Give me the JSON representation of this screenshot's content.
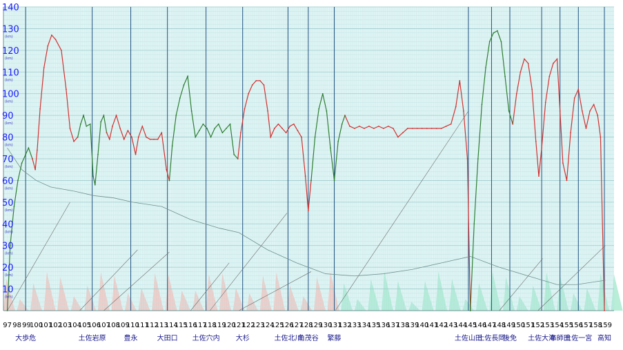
{
  "chart_data": {
    "type": "line",
    "title": "",
    "xlabel": "",
    "ylabel": "",
    "xlim": [
      96.6,
      159.9
    ],
    "ylim": [
      0,
      140
    ],
    "y_ticks": [
      10,
      20,
      30,
      40,
      50,
      60,
      70,
      80,
      90,
      100,
      110,
      120,
      130,
      140
    ],
    "y_unit_marks": [
      "(km)",
      "(km)",
      "(km)",
      "(km)",
      "(km)",
      "(km)",
      "(km)",
      "(km)",
      "(km)",
      "(km)",
      "(km)",
      "(km)",
      "(km)"
    ],
    "x_ticks": [
      97,
      98,
      99,
      100,
      101,
      102,
      103,
      104,
      105,
      106,
      107,
      108,
      109,
      110,
      111,
      112,
      113,
      114,
      115,
      116,
      117,
      118,
      119,
      120,
      121,
      122,
      123,
      124,
      125,
      126,
      127,
      128,
      129,
      130,
      131,
      132,
      133,
      134,
      135,
      136,
      137,
      138,
      139,
      140,
      141,
      142,
      143,
      144,
      145,
      146,
      147,
      148,
      149,
      150,
      151,
      152,
      153,
      154,
      155,
      156,
      157,
      158,
      159
    ],
    "grid": true,
    "stations": [
      {
        "name": "大歩危",
        "x": 98.9
      },
      {
        "name": "土佐岩原",
        "x": 105.8
      },
      {
        "name": "豊永",
        "x": 109.8
      },
      {
        "name": "大田口",
        "x": 113.6
      },
      {
        "name": "土佐穴内",
        "x": 117.6
      },
      {
        "name": "大杉",
        "x": 121.4
      },
      {
        "name": "土佐北川",
        "x": 126.1
      },
      {
        "name": "角茂谷",
        "x": 128.2
      },
      {
        "name": "繁藤",
        "x": 130.9
      },
      {
        "name": "土佐山田",
        "x": 144.8
      },
      {
        "name": "土佐長岡",
        "x": 147.2
      },
      {
        "name": "後免",
        "x": 149.1
      },
      {
        "name": "土佐大津",
        "x": 152.4
      },
      {
        "name": "布師田",
        "x": 154.3
      },
      {
        "name": "土佐一宮",
        "x": 156.2
      },
      {
        "name": "高知",
        "x": 158.9
      }
    ],
    "series": [
      {
        "color": "#2e7d32",
        "points": [
          [
            97.0,
            0
          ],
          [
            97.3,
            30
          ],
          [
            97.7,
            48
          ],
          [
            98.1,
            60
          ],
          [
            98.5,
            68
          ],
          [
            98.9,
            72
          ],
          [
            99.2,
            75
          ],
          [
            99.6,
            70
          ]
        ]
      },
      {
        "color": "#d32f2f",
        "points": [
          [
            99.6,
            70
          ],
          [
            99.9,
            65
          ],
          [
            100.1,
            74
          ],
          [
            100.4,
            93
          ],
          [
            100.8,
            112
          ],
          [
            101.2,
            122
          ],
          [
            101.6,
            127
          ],
          [
            102.0,
            125
          ],
          [
            102.6,
            120
          ],
          [
            103.1,
            102
          ],
          [
            103.5,
            84
          ],
          [
            103.9,
            78
          ],
          [
            104.3,
            80
          ]
        ]
      },
      {
        "color": "#2e7d32",
        "points": [
          [
            104.3,
            80
          ],
          [
            104.6,
            86
          ],
          [
            104.9,
            90
          ],
          [
            105.2,
            85
          ],
          [
            105.6,
            86
          ],
          [
            105.9,
            62
          ],
          [
            106.1,
            58
          ],
          [
            106.4,
            72
          ],
          [
            106.7,
            87
          ],
          [
            107.0,
            90
          ],
          [
            107.3,
            82
          ]
        ]
      },
      {
        "color": "#d32f2f",
        "points": [
          [
            107.3,
            82
          ],
          [
            107.6,
            79
          ],
          [
            107.9,
            85
          ],
          [
            108.3,
            90
          ],
          [
            108.7,
            84
          ],
          [
            109.1,
            79
          ],
          [
            109.5,
            83
          ],
          [
            109.9,
            80
          ],
          [
            110.3,
            72
          ],
          [
            110.6,
            80
          ],
          [
            111.0,
            85
          ],
          [
            111.4,
            80
          ],
          [
            111.8,
            79
          ],
          [
            112.2,
            79
          ],
          [
            112.6,
            79
          ],
          [
            113.0,
            82
          ],
          [
            113.5,
            65
          ],
          [
            113.8,
            60
          ]
        ]
      },
      {
        "color": "#2e7d32",
        "points": [
          [
            113.8,
            60
          ],
          [
            114.1,
            76
          ],
          [
            114.5,
            90
          ],
          [
            114.9,
            98
          ],
          [
            115.3,
            104
          ],
          [
            115.7,
            108
          ],
          [
            116.1,
            92
          ],
          [
            116.5,
            80
          ],
          [
            116.9,
            83
          ],
          [
            117.3,
            86
          ],
          [
            117.7,
            84
          ],
          [
            118.1,
            80
          ],
          [
            118.5,
            84
          ],
          [
            118.9,
            86
          ],
          [
            119.3,
            82
          ],
          [
            119.7,
            84
          ],
          [
            120.1,
            86
          ],
          [
            120.5,
            72
          ],
          [
            120.9,
            70
          ]
        ]
      },
      {
        "color": "#d32f2f",
        "points": [
          [
            120.9,
            70
          ],
          [
            121.2,
            82
          ],
          [
            121.6,
            93
          ],
          [
            122.0,
            100
          ],
          [
            122.4,
            104
          ],
          [
            122.8,
            106
          ],
          [
            123.2,
            106
          ],
          [
            123.6,
            104
          ],
          [
            124.0,
            92
          ],
          [
            124.3,
            80
          ],
          [
            124.7,
            84
          ],
          [
            125.1,
            86
          ],
          [
            125.5,
            84
          ],
          [
            125.9,
            82
          ],
          [
            126.3,
            85
          ],
          [
            126.7,
            86
          ],
          [
            127.1,
            83
          ],
          [
            127.5,
            80
          ],
          [
            127.9,
            62
          ],
          [
            128.2,
            46
          ],
          [
            128.5,
            60
          ]
        ]
      },
      {
        "color": "#2e7d32",
        "points": [
          [
            128.5,
            60
          ],
          [
            128.9,
            80
          ],
          [
            129.3,
            93
          ],
          [
            129.7,
            100
          ],
          [
            130.1,
            92
          ],
          [
            130.5,
            75
          ],
          [
            130.9,
            60
          ],
          [
            131.3,
            78
          ],
          [
            131.7,
            86
          ],
          [
            132.0,
            90
          ]
        ]
      },
      {
        "color": "#d32f2f",
        "points": [
          [
            132.0,
            90
          ],
          [
            132.5,
            85
          ],
          [
            133.0,
            84
          ],
          [
            133.5,
            85
          ],
          [
            134.0,
            84
          ],
          [
            134.5,
            85
          ],
          [
            135.0,
            84
          ],
          [
            135.5,
            85
          ],
          [
            136.0,
            84
          ],
          [
            136.5,
            85
          ],
          [
            137.0,
            84
          ],
          [
            137.5,
            80
          ],
          [
            138.0,
            82
          ],
          [
            138.5,
            84
          ],
          [
            139.0,
            84
          ],
          [
            139.5,
            84
          ],
          [
            140.0,
            84
          ],
          [
            140.5,
            84
          ],
          [
            141.0,
            84
          ],
          [
            141.5,
            84
          ],
          [
            142.0,
            84
          ],
          [
            142.5,
            85
          ],
          [
            143.0,
            86
          ],
          [
            143.5,
            94
          ],
          [
            143.9,
            106
          ],
          [
            144.3,
            92
          ],
          [
            144.7,
            70
          ],
          [
            145.0,
            0
          ]
        ]
      },
      {
        "color": "#2e7d32",
        "points": [
          [
            145.0,
            0
          ],
          [
            145.4,
            40
          ],
          [
            145.8,
            70
          ],
          [
            146.2,
            95
          ],
          [
            146.6,
            112
          ],
          [
            147.0,
            124
          ],
          [
            147.4,
            128
          ],
          [
            147.8,
            129
          ],
          [
            148.2,
            124
          ],
          [
            148.6,
            108
          ],
          [
            149.0,
            92
          ],
          [
            149.4,
            86
          ]
        ]
      },
      {
        "color": "#d32f2f",
        "points": [
          [
            149.4,
            86
          ],
          [
            149.8,
            100
          ],
          [
            150.2,
            110
          ],
          [
            150.6,
            116
          ],
          [
            151.0,
            114
          ],
          [
            151.4,
            102
          ],
          [
            151.8,
            78
          ],
          [
            152.1,
            62
          ],
          [
            152.4,
            75
          ],
          [
            152.8,
            96
          ],
          [
            153.2,
            108
          ],
          [
            153.6,
            114
          ],
          [
            154.0,
            116
          ],
          [
            154.3,
            92
          ],
          [
            154.6,
            68
          ],
          [
            155.0,
            60
          ],
          [
            155.4,
            82
          ],
          [
            155.8,
            98
          ],
          [
            156.2,
            102
          ],
          [
            156.6,
            92
          ],
          [
            157.0,
            84
          ],
          [
            157.4,
            92
          ],
          [
            157.8,
            95
          ],
          [
            158.2,
            90
          ],
          [
            158.5,
            80
          ],
          [
            158.9,
            0
          ]
        ]
      }
    ]
  }
}
